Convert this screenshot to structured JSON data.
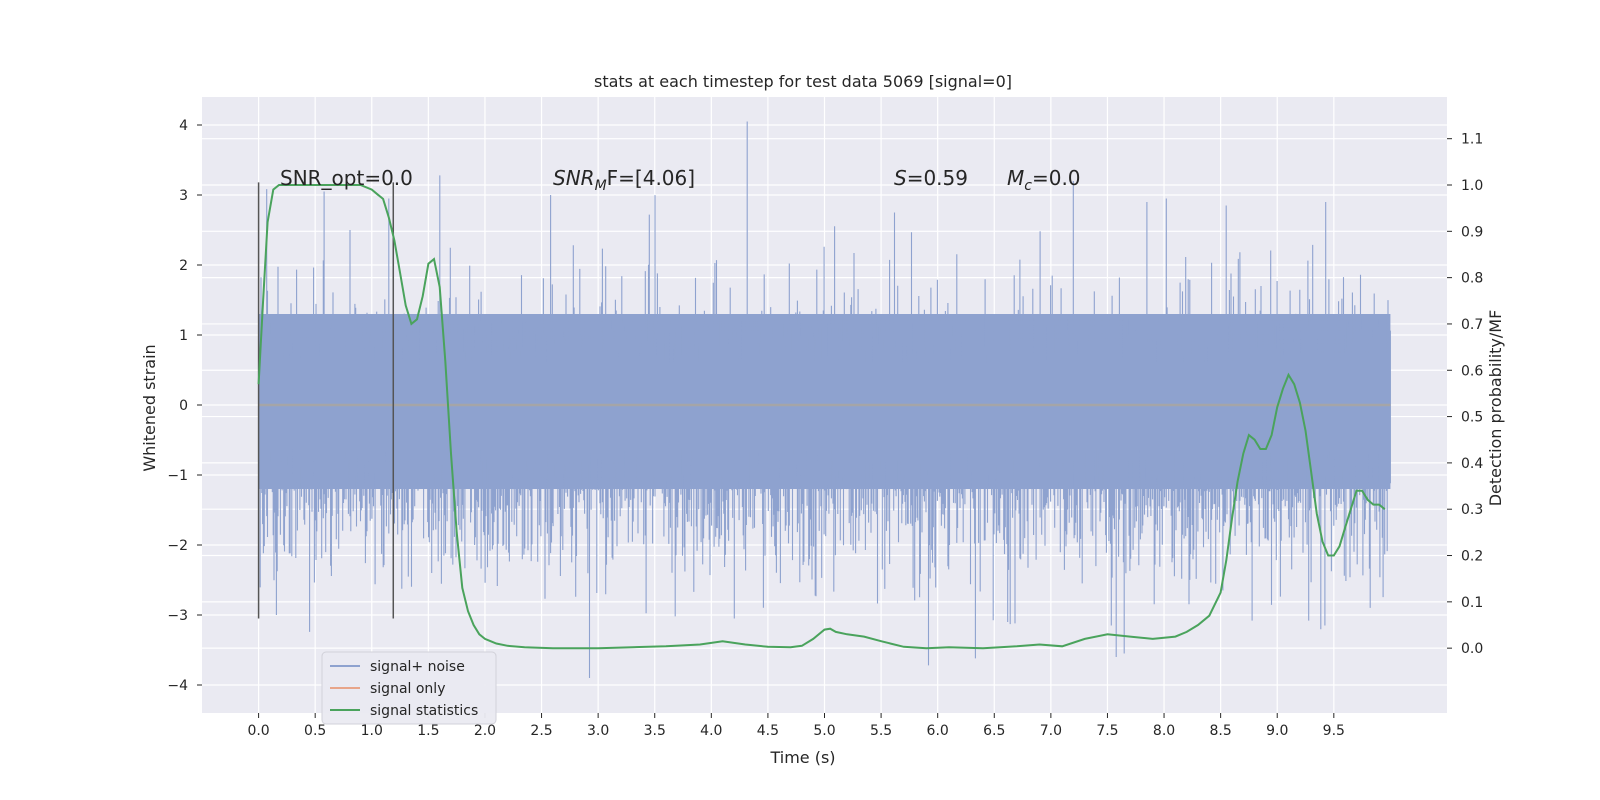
{
  "chart_data": {
    "type": "line",
    "title": "stats at each timestep for test data 5069 [signal=0]",
    "xlabel": "Time (s)",
    "ylabel": "Whitened strain",
    "y2label": "Detection probability/MF",
    "xlim": [
      -0.5,
      10.5
    ],
    "ylim": [
      -4.4,
      4.4
    ],
    "y2lim": [
      -0.14,
      1.19
    ],
    "x_ticks": [
      0.0,
      0.5,
      1.0,
      1.5,
      2.0,
      2.5,
      3.0,
      3.5,
      4.0,
      4.5,
      5.0,
      5.5,
      6.0,
      6.5,
      7.0,
      7.5,
      8.0,
      8.5,
      9.0,
      9.5
    ],
    "x_tick_labels": [
      "0.0",
      "0.5",
      "1.0",
      "1.5",
      "2.0",
      "2.5",
      "3.0",
      "3.5",
      "4.0",
      "4.5",
      "5.0",
      "5.5",
      "6.0",
      "6.5",
      "7.0",
      "7.5",
      "8.0",
      "8.5",
      "9.0",
      "9.5"
    ],
    "y_ticks": [
      -4,
      -3,
      -2,
      -1,
      0,
      1,
      2,
      3,
      4
    ],
    "y_tick_labels": [
      "−4",
      "−3",
      "−2",
      "−1",
      "0",
      "1",
      "2",
      "3",
      "4"
    ],
    "y2_ticks": [
      0.0,
      0.1,
      0.2,
      0.3,
      0.4,
      0.5,
      0.6,
      0.7,
      0.8,
      0.9,
      1.0,
      1.1
    ],
    "y2_tick_labels": [
      "0.0",
      "0.1",
      "0.2",
      "0.3",
      "0.4",
      "0.5",
      "0.6",
      "0.7",
      "0.8",
      "0.9",
      "1.0",
      "1.1"
    ],
    "grid": true,
    "legend": {
      "position": "lower-left",
      "entries": [
        {
          "label": "signal+ noise",
          "color": "#8ea2cf"
        },
        {
          "label": "signal only",
          "color": "#e8a58a"
        },
        {
          "label": "signal statistics",
          "color": "#4aa35c"
        }
      ]
    },
    "annotations": {
      "snr_opt": "SNR_opt=0.0",
      "snr_mf_prefix": "SNR",
      "snr_mf_sub": "M",
      "snr_mf_suffix": "F=[4.06]",
      "s_italic": "S",
      "s_value": "=0.59",
      "mc_italic": "M",
      "mc_sub": "c",
      "mc_value": "=0.0"
    },
    "vertical_lines_x": [
      0.0,
      1.19
    ],
    "vertical_lines_range": [
      -3.05,
      3.18
    ],
    "noise": {
      "x_range": [
        0.0,
        10.0
      ],
      "core_band": [
        -1.2,
        1.3
      ],
      "color": "#8ea2cf",
      "peaks_top": [
        [
          4.32,
          4.05
        ],
        [
          1.6,
          3.28
        ],
        [
          7.2,
          3.2
        ],
        [
          2.58,
          3.0
        ],
        [
          1.15,
          2.95
        ],
        [
          0.58,
          3.05
        ],
        [
          8.02,
          2.95
        ],
        [
          9.43,
          2.9
        ],
        [
          8.55,
          2.85
        ],
        [
          5.62,
          2.75
        ],
        [
          7.85,
          2.9
        ],
        [
          3.45,
          2.72
        ]
      ],
      "peaks_bottom": [
        [
          2.92,
          -3.9
        ],
        [
          5.92,
          -3.72
        ],
        [
          6.33,
          -3.62
        ],
        [
          7.58,
          -3.6
        ],
        [
          7.65,
          -3.55
        ],
        [
          4.2,
          -3.05
        ],
        [
          6.62,
          -3.1
        ],
        [
          6.68,
          -3.12
        ],
        [
          9.28,
          -3.08
        ],
        [
          8.78,
          -3.08
        ],
        [
          0.16,
          -3.0
        ],
        [
          3.68,
          -3.02
        ]
      ]
    },
    "series": [
      {
        "name": "signal statistics",
        "axis": "right",
        "color": "#4aa35c",
        "x": [
          0.0,
          0.04,
          0.08,
          0.13,
          0.18,
          0.25,
          0.35,
          0.5,
          0.7,
          0.9,
          1.0,
          1.05,
          1.1,
          1.15,
          1.2,
          1.25,
          1.3,
          1.35,
          1.4,
          1.45,
          1.5,
          1.55,
          1.6,
          1.65,
          1.7,
          1.75,
          1.8,
          1.85,
          1.9,
          1.95,
          2.0,
          2.05,
          2.1,
          2.2,
          2.35,
          2.6,
          3.0,
          3.3,
          3.6,
          3.9,
          4.1,
          4.3,
          4.5,
          4.7,
          4.8,
          4.9,
          5.0,
          5.05,
          5.1,
          5.2,
          5.35,
          5.5,
          5.7,
          5.9,
          6.1,
          6.4,
          6.7,
          6.9,
          7.1,
          7.3,
          7.5,
          7.7,
          7.9,
          8.1,
          8.2,
          8.3,
          8.4,
          8.5,
          8.55,
          8.6,
          8.65,
          8.7,
          8.75,
          8.8,
          8.85,
          8.9,
          8.95,
          9.0,
          9.05,
          9.1,
          9.15,
          9.2,
          9.25,
          9.3,
          9.35,
          9.4,
          9.45,
          9.5,
          9.55,
          9.6,
          9.65,
          9.7,
          9.75,
          9.8,
          9.85,
          9.9,
          9.95
        ],
        "values": [
          0.57,
          0.75,
          0.92,
          0.99,
          1.0,
          1.0,
          1.0,
          1.0,
          1.0,
          1.0,
          0.99,
          0.98,
          0.97,
          0.93,
          0.88,
          0.81,
          0.74,
          0.7,
          0.71,
          0.76,
          0.83,
          0.84,
          0.78,
          0.62,
          0.42,
          0.25,
          0.13,
          0.08,
          0.05,
          0.03,
          0.02,
          0.015,
          0.01,
          0.005,
          0.002,
          0.0,
          0.0,
          0.002,
          0.004,
          0.008,
          0.015,
          0.008,
          0.003,
          0.002,
          0.005,
          0.02,
          0.04,
          0.042,
          0.035,
          0.03,
          0.025,
          0.015,
          0.003,
          0.0,
          0.002,
          0.0,
          0.004,
          0.008,
          0.004,
          0.02,
          0.03,
          0.025,
          0.02,
          0.025,
          0.035,
          0.05,
          0.07,
          0.12,
          0.19,
          0.28,
          0.36,
          0.42,
          0.46,
          0.45,
          0.43,
          0.43,
          0.46,
          0.52,
          0.56,
          0.59,
          0.57,
          0.53,
          0.47,
          0.38,
          0.29,
          0.23,
          0.2,
          0.2,
          0.22,
          0.26,
          0.3,
          0.34,
          0.34,
          0.32,
          0.31,
          0.31,
          0.3
        ]
      }
    ]
  }
}
